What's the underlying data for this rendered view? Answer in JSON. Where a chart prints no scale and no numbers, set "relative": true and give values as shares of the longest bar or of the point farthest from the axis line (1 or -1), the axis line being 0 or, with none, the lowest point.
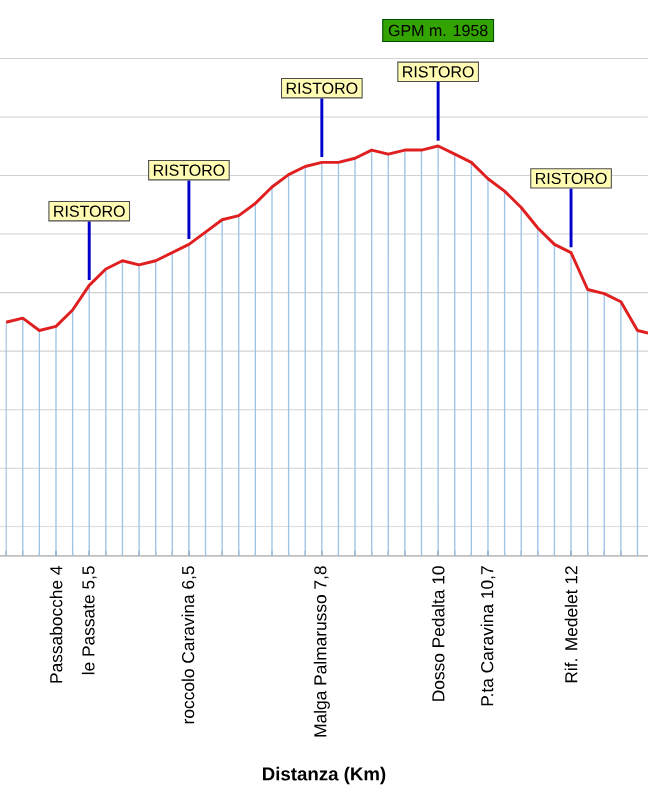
{
  "chart_data": {
    "type": "line",
    "relative": true,
    "xlabel": "Distanza (Km)",
    "color": "#e02020",
    "grid": true,
    "marker": "none",
    "line_style": "solid",
    "categories": [
      null,
      null,
      null,
      "Passabocche 4",
      null,
      "le Passate 5,5",
      null,
      null,
      null,
      null,
      null,
      "roccolo Caravina 6,5",
      null,
      null,
      null,
      null,
      null,
      null,
      null,
      "Malga Palmarusso 7,8",
      null,
      null,
      null,
      null,
      null,
      null,
      "Dosso Pedalta 10",
      null,
      null,
      "P.ta Caravina 10,7",
      null,
      null,
      null,
      null,
      "Rif. Medelet 12",
      null,
      null,
      null,
      null,
      null
    ],
    "values": [
      0.57,
      0.58,
      0.55,
      0.56,
      0.6,
      0.66,
      0.7,
      0.72,
      0.71,
      0.72,
      0.74,
      0.76,
      0.79,
      0.82,
      0.83,
      0.86,
      0.9,
      0.93,
      0.95,
      0.96,
      0.96,
      0.97,
      0.99,
      0.98,
      0.99,
      0.99,
      1,
      0.98,
      0.96,
      0.92,
      0.89,
      0.85,
      0.8,
      0.76,
      0.74,
      0.65,
      0.64,
      0.62,
      0.55,
      0.54
    ],
    "annotations": [
      {
        "text": "RISTORO",
        "x": "le Passate 5,5",
        "y": 0.66
      },
      {
        "text": "RISTORO",
        "x": "roccolo Caravina 6,5",
        "y": 0.76
      },
      {
        "text": "RISTORO",
        "x": "Malga Palmarusso 7,8",
        "y": 0.96
      },
      {
        "text": "RISTORO",
        "x": "Dosso Pedalta 10",
        "y": 1
      },
      {
        "text": "RISTORO",
        "x": "Rif. Medelet 12",
        "y": 0.74
      },
      "GPM m. 1958"
    ]
  }
}
